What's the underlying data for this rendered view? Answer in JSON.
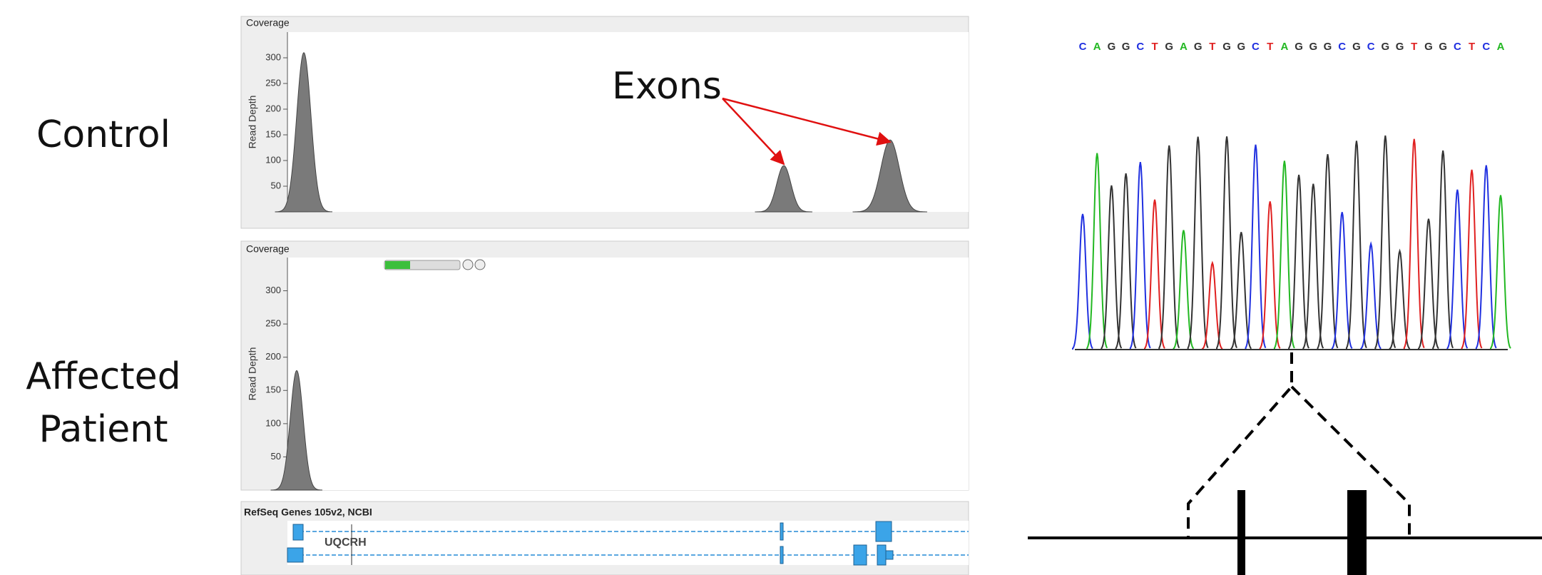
{
  "row_labels": [
    "Control",
    "Affected Patient"
  ],
  "annotation": "Exons",
  "tracks": [
    {
      "title": "Coverage",
      "y_label": "Read Depth",
      "ylim": [
        0,
        350
      ],
      "yticks": [
        50,
        100,
        150,
        200,
        250,
        300
      ],
      "peaks": [
        310,
        90,
        140
      ]
    },
    {
      "title": "Coverage",
      "y_label": "Read Depth",
      "ylim": [
        0,
        350
      ],
      "yticks": [
        50,
        100,
        150,
        200,
        250,
        300
      ],
      "peaks": [
        180
      ]
    }
  ],
  "gene_track": {
    "title": "RefSeq Genes 105v2, NCBI",
    "gene": "UQCRH"
  },
  "sequence": [
    "C",
    "A",
    "G",
    "G",
    "C",
    "T",
    "G",
    "A",
    "G",
    "T",
    "G",
    "G",
    "C",
    "T",
    "A",
    "G",
    "G",
    "G",
    "C",
    "G",
    "C",
    "G",
    "G",
    "T",
    "G",
    "G",
    "C",
    "T",
    "C",
    "A"
  ]
}
